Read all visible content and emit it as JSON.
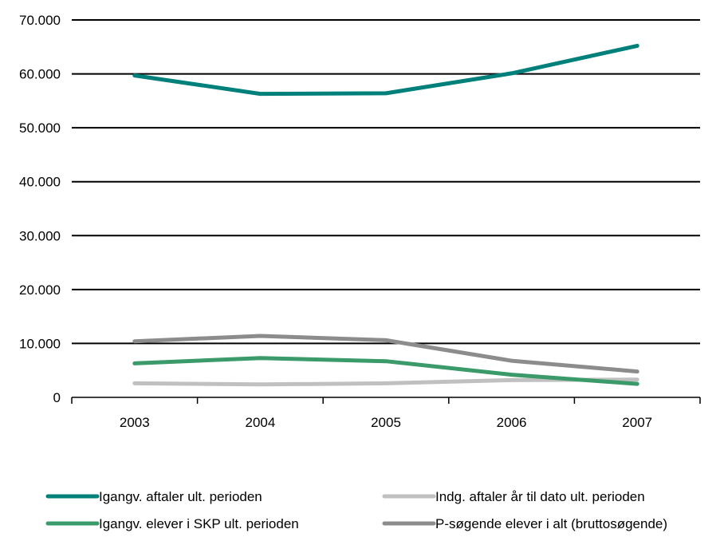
{
  "chart_data": {
    "type": "line",
    "categories": [
      "2003",
      "2004",
      "2005",
      "2006",
      "2007"
    ],
    "ylim": [
      0,
      70000
    ],
    "yticks": [
      {
        "value": 0,
        "label": "0"
      },
      {
        "value": 10000,
        "label": "10.000"
      },
      {
        "value": 20000,
        "label": "20.000"
      },
      {
        "value": 30000,
        "label": "30.000"
      },
      {
        "value": 40000,
        "label": "40.000"
      },
      {
        "value": 50000,
        "label": "50.000"
      },
      {
        "value": 60000,
        "label": "60.000"
      },
      {
        "value": 70000,
        "label": "70.000"
      }
    ],
    "grid": true,
    "legend_position": "bottom",
    "series": [
      {
        "name": "Igangv. aftaler ult. perioden",
        "color": "#00807a",
        "values": [
          59700,
          56300,
          56400,
          60100,
          65200
        ]
      },
      {
        "name": "Indg. aftaler år til dato ult. perioden",
        "color": "#c0c0c0",
        "values": [
          2600,
          2400,
          2600,
          3200,
          3300
        ]
      },
      {
        "name": "Igangv. elever i SKP ult. perioden",
        "color": "#3a9a6a",
        "values": [
          6300,
          7300,
          6700,
          4200,
          2500
        ]
      },
      {
        "name": "P-søgende elever i alt (bruttosøgende)",
        "color": "#8c8c8c",
        "values": [
          10400,
          11400,
          10600,
          6800,
          4800
        ]
      }
    ]
  }
}
